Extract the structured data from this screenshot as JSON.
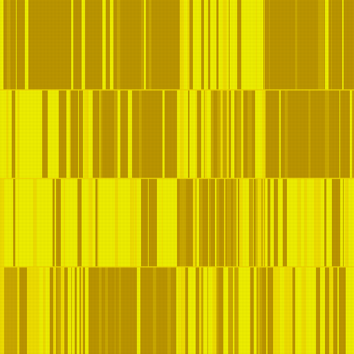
{
  "colors": {
    "base_dark": "#c9a000",
    "base_mid": "#d8b400",
    "stripe_bright": "#ffff00",
    "stripe_light": "#ffec00",
    "seam": "#ffe600"
  },
  "pattern": {
    "description_name": "yellow-stripe-texture",
    "rows": 4,
    "cols": 4
  }
}
